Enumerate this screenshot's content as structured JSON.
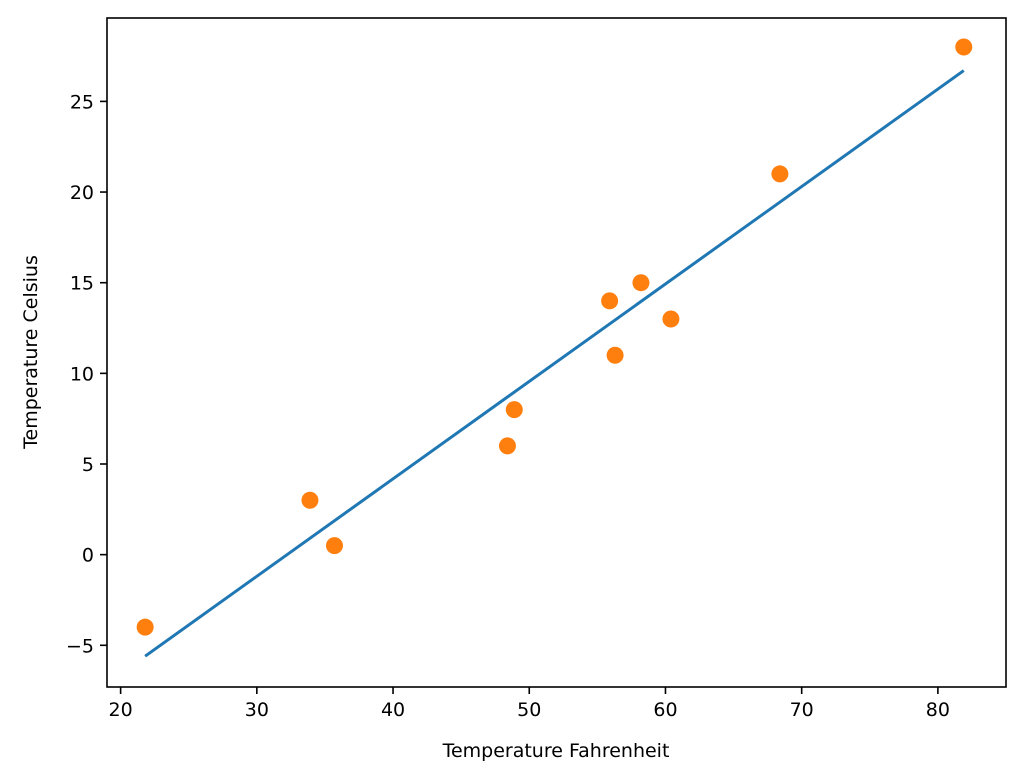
{
  "chart_data": {
    "type": "scatter",
    "title": "",
    "xlabel": "Temperature Fahrenheit",
    "ylabel": "Temperature Celsius",
    "xlim": [
      19,
      85
    ],
    "ylim": [
      -7.3,
      29.6
    ],
    "x_ticks": [
      20,
      30,
      40,
      50,
      60,
      70,
      80
    ],
    "x_tick_labels": [
      "20",
      "30",
      "40",
      "50",
      "60",
      "70",
      "80"
    ],
    "y_ticks": [
      -5,
      0,
      5,
      10,
      15,
      20,
      25
    ],
    "y_tick_labels": [
      "−5",
      "0",
      "5",
      "10",
      "15",
      "20",
      "25"
    ],
    "grid": false,
    "legend": "none",
    "series": [
      {
        "type": "line",
        "color": "#1f77b4",
        "x": [
          21.8,
          81.9
        ],
        "y": [
          -5.6,
          26.7
        ]
      },
      {
        "type": "scatter",
        "color": "#ff7f0e",
        "x": [
          21.8,
          33.9,
          35.7,
          48.4,
          48.9,
          55.9,
          56.3,
          58.2,
          60.4,
          68.4,
          81.9
        ],
        "y": [
          -4.0,
          3.0,
          0.5,
          6.0,
          8.0,
          14.0,
          11.0,
          15.0,
          13.0,
          21.0,
          28.0
        ]
      }
    ]
  }
}
